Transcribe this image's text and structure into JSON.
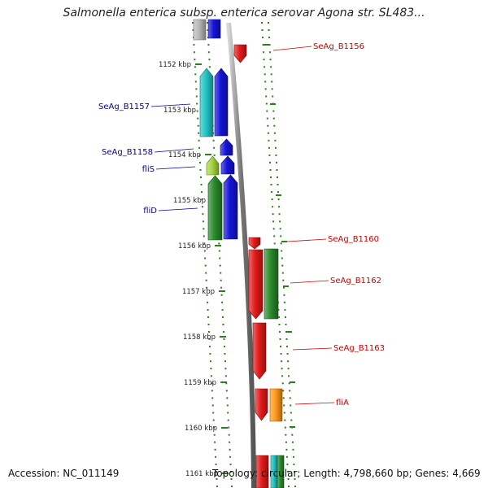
{
  "title": "Salmonella enterica subsp. enterica serovar Agona str. SL483...",
  "accession": "Accession: NC_011149",
  "topology_info": "Topology: circular; Length: 4,798,660 bp; Genes: 4,669",
  "colors": {
    "ruler_tick": "#2e7d1e",
    "minus_label": "#000099",
    "plus_label": "#cc0000",
    "backbone": "#8a8a8a",
    "red": "#e31a1a",
    "blue": "#1414d8",
    "cyan": "#22c4c4",
    "dark_green": "#2a8a2a",
    "yellow_green": "#a6d640",
    "orange": "#ff9a1a",
    "gray": "#b8b8b8"
  },
  "ruler": [
    "1152 kbp",
    "1153 kbp",
    "1154 kbp",
    "1155 kbp",
    "1156 kbp",
    "1157 kbp",
    "1158 kbp",
    "1159 kbp",
    "1160 kbp",
    "1161 kbp"
  ],
  "minus_strand_labels": [
    "SeAg_B1157",
    "SeAg_B1158",
    "fliS",
    "fliD"
  ],
  "plus_strand_labels": [
    "SeAg_B1156",
    "SeAg_B1160",
    "SeAg_B1162",
    "SeAg_B1163",
    "fliA"
  ]
}
